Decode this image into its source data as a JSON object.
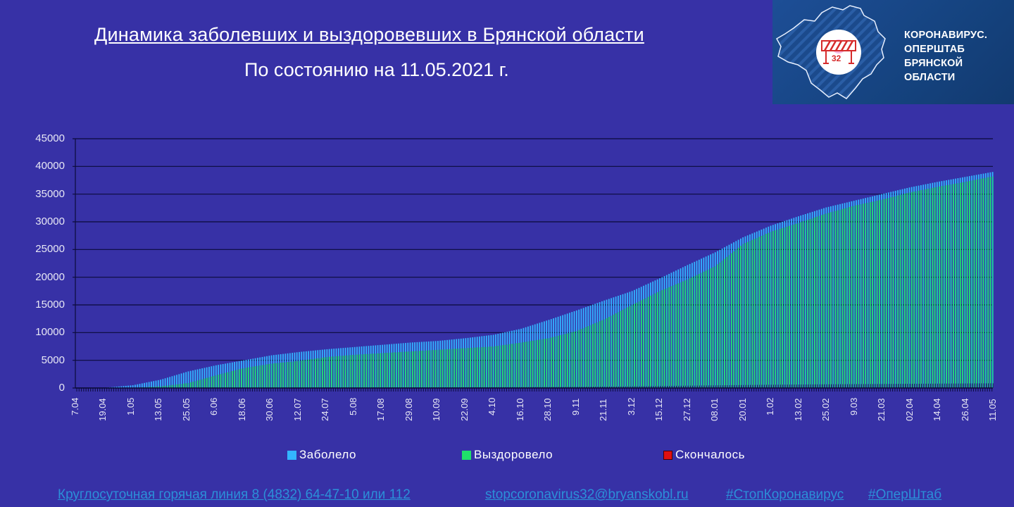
{
  "header": {
    "title": "Динамика заболевших и выздоровевших в Брянской области",
    "subtitle": "По состоянию на 11.05.2021 г."
  },
  "logo": {
    "line1": "КОРОНАВИРУС.",
    "line2": "ОПЕРШТАБ",
    "line3": "БРЯНСКОЙ ОБЛАСТИ",
    "badge_number": "32",
    "icon": "barrier-icon"
  },
  "chart_data": {
    "type": "bar",
    "title": "Динамика заболевших и выздоровевших в Брянской области",
    "subtitle": "По состоянию на 11.05.2021 г.",
    "xlabel": "",
    "ylabel": "",
    "ylim": [
      0,
      45000
    ],
    "yticks": [
      0,
      5000,
      10000,
      15000,
      20000,
      25000,
      30000,
      35000,
      40000,
      45000
    ],
    "grid": true,
    "legend_position": "bottom",
    "stacking": "overlapped",
    "categories": [
      "7.04",
      "19.04",
      "1.05",
      "13.05",
      "25.05",
      "6.06",
      "18.06",
      "30.06",
      "12.07",
      "24.07",
      "5.08",
      "17.08",
      "29.08",
      "10.09",
      "22.09",
      "4.10",
      "16.10",
      "28.10",
      "9.11",
      "21.11",
      "3.12",
      "15.12",
      "27.12",
      "08.01",
      "20.01",
      "1.02",
      "13.02",
      "25.02",
      "9.03",
      "21.03",
      "02.04",
      "14.04",
      "26.04",
      "11.05"
    ],
    "series": [
      {
        "name": "Заболело",
        "color": "#33b5ff",
        "values": [
          0,
          50,
          500,
          1500,
          3000,
          4100,
          5000,
          5900,
          6500,
          7000,
          7400,
          7800,
          8200,
          8500,
          9000,
          9600,
          10700,
          12300,
          14000,
          15800,
          17500,
          19800,
          22200,
          24500,
          27200,
          29300,
          31000,
          32600,
          33800,
          35000,
          36200,
          37200,
          38100,
          39000
        ]
      },
      {
        "name": "Выздоровело",
        "color": "#1fe06a",
        "values": [
          0,
          0,
          50,
          300,
          900,
          2300,
          3600,
          4400,
          4900,
          5600,
          6000,
          6300,
          6600,
          6900,
          7200,
          7500,
          8200,
          9000,
          10300,
          12400,
          15000,
          17500,
          19600,
          22000,
          26000,
          28200,
          29800,
          31500,
          32900,
          34000,
          35300,
          36300,
          37200,
          38200
        ]
      },
      {
        "name": "Скончалось",
        "color": "#e01010",
        "values": [
          0,
          0,
          5,
          15,
          25,
          40,
          55,
          65,
          75,
          85,
          95,
          105,
          115,
          125,
          135,
          145,
          160,
          180,
          210,
          250,
          300,
          360,
          420,
          480,
          540,
          590,
          630,
          670,
          700,
          730,
          760,
          790,
          820,
          850
        ]
      }
    ]
  },
  "legend": [
    {
      "label": "Заболело",
      "color": "#33b5ff"
    },
    {
      "label": "Выздоровело",
      "color": "#1fe06a"
    },
    {
      "label": "Скончалось",
      "color": "#e01010"
    }
  ],
  "footer": {
    "hotline": "Круглосуточная горячая линия  8 (4832) 64-47-10 или  112",
    "email": "stopcoronavirus32@bryanskobl.ru",
    "hashtag1": "#СтопКоронавирус",
    "hashtag2": "#ОперШтаб"
  }
}
